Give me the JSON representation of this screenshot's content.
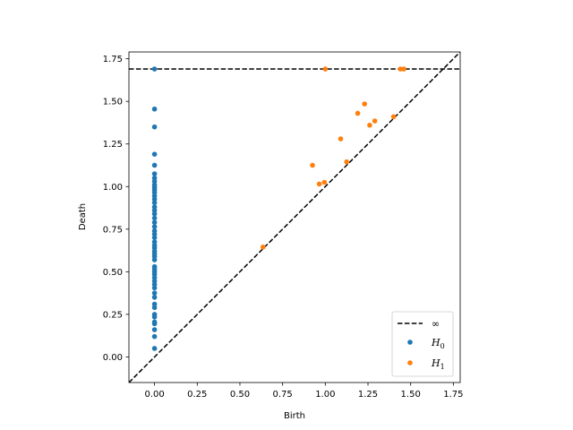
{
  "chart_data": {
    "type": "scatter",
    "title": "",
    "xlabel": "Birth",
    "ylabel": "Death",
    "xlim": [
      -0.15,
      1.79
    ],
    "ylim": [
      -0.15,
      1.79
    ],
    "xticks": [
      "0.00",
      "0.25",
      "0.50",
      "0.75",
      "1.00",
      "1.25",
      "1.50",
      "1.75"
    ],
    "yticks": [
      "0.00",
      "0.25",
      "0.50",
      "0.75",
      "1.00",
      "1.25",
      "1.50",
      "1.75"
    ],
    "grid": false,
    "legend_position": "bottom-right",
    "infinity_line": {
      "label": "∞",
      "y": 1.69,
      "style": "dashed",
      "color": "#000000"
    },
    "diagonal": {
      "style": "dashed",
      "color": "#000000"
    },
    "series": [
      {
        "name": "H",
        "subscript": "0",
        "color": "#1f77b4",
        "points": [
          [
            0,
            1.69
          ],
          [
            0,
            1.455
          ],
          [
            0,
            1.35
          ],
          [
            0,
            1.19
          ],
          [
            0,
            1.125
          ],
          [
            0,
            1.075
          ],
          [
            0,
            1.05
          ],
          [
            0,
            1.03
          ],
          [
            0,
            1.01
          ],
          [
            0,
            0.995
          ],
          [
            0,
            0.98
          ],
          [
            0,
            0.965
          ],
          [
            0,
            0.945
          ],
          [
            0,
            0.925
          ],
          [
            0,
            0.905
          ],
          [
            0,
            0.88
          ],
          [
            0,
            0.86
          ],
          [
            0,
            0.84
          ],
          [
            0,
            0.815
          ],
          [
            0,
            0.79
          ],
          [
            0,
            0.765
          ],
          [
            0,
            0.74
          ],
          [
            0,
            0.72
          ],
          [
            0,
            0.7
          ],
          [
            0,
            0.675
          ],
          [
            0,
            0.655
          ],
          [
            0,
            0.64
          ],
          [
            0,
            0.62
          ],
          [
            0,
            0.605
          ],
          [
            0,
            0.59
          ],
          [
            0,
            0.57
          ],
          [
            0,
            0.53
          ],
          [
            0,
            0.515
          ],
          [
            0,
            0.5
          ],
          [
            0,
            0.485
          ],
          [
            0,
            0.465
          ],
          [
            0,
            0.445
          ],
          [
            0,
            0.425
          ],
          [
            0,
            0.405
          ],
          [
            0,
            0.375
          ],
          [
            0,
            0.35
          ],
          [
            0,
            0.31
          ],
          [
            0,
            0.29
          ],
          [
            0,
            0.25
          ],
          [
            0,
            0.235
          ],
          [
            0,
            0.205
          ],
          [
            0,
            0.195
          ],
          [
            0,
            0.16
          ],
          [
            0,
            0.12
          ],
          [
            0,
            0.05
          ]
        ]
      },
      {
        "name": "H",
        "subscript": "1",
        "color": "#ff7f0e",
        "points": [
          [
            1.0,
            1.69
          ],
          [
            1.44,
            1.69
          ],
          [
            1.46,
            1.69
          ],
          [
            1.23,
            1.485
          ],
          [
            1.19,
            1.43
          ],
          [
            1.4,
            1.41
          ],
          [
            1.29,
            1.385
          ],
          [
            1.26,
            1.36
          ],
          [
            1.09,
            1.28
          ],
          [
            0.925,
            1.125
          ],
          [
            1.125,
            1.145
          ],
          [
            0.995,
            1.025
          ],
          [
            0.965,
            1.015
          ],
          [
            0.635,
            0.645
          ]
        ]
      }
    ]
  }
}
